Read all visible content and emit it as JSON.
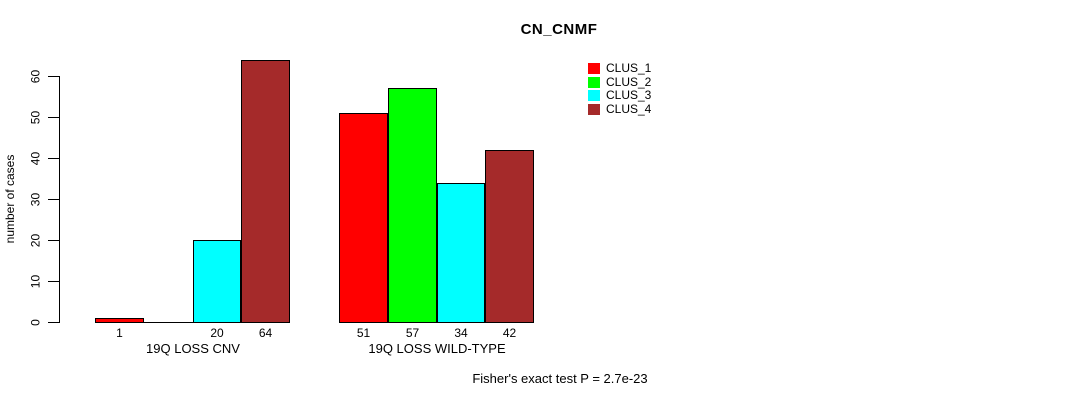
{
  "title": "CN_CNMF",
  "chart_data": {
    "type": "bar",
    "title": "CN_CNMF",
    "xlabel": "",
    "ylabel": "number of cases",
    "ylim": [
      0,
      60
    ],
    "yticks": [
      0,
      10,
      20,
      30,
      40,
      50,
      60
    ],
    "grid": false,
    "legend_position": "top-right",
    "categories": [
      "19Q LOSS CNV",
      "19Q LOSS WILD-TYPE"
    ],
    "series": [
      {
        "name": "CLUS_1",
        "color": "#ff0000",
        "values": [
          1,
          51
        ]
      },
      {
        "name": "CLUS_2",
        "color": "#00ff00",
        "values": [
          0,
          57
        ]
      },
      {
        "name": "CLUS_3",
        "color": "#00ffff",
        "values": [
          20,
          34
        ]
      },
      {
        "name": "CLUS_4",
        "color": "#a52a2a",
        "values": [
          64,
          42
        ]
      }
    ],
    "bar_labels": [
      [
        "1",
        "",
        "20",
        "64"
      ],
      [
        "51",
        "57",
        "34",
        "42"
      ]
    ],
    "annotation": "Fisher's exact test P = 2.7e-23"
  }
}
